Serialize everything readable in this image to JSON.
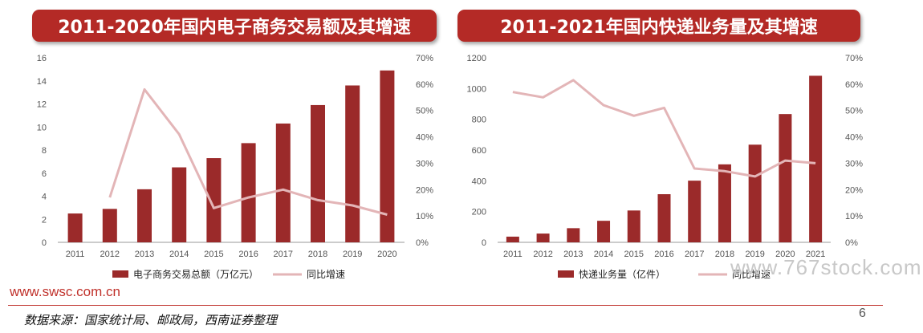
{
  "colors": {
    "bar": "#9b2a2a",
    "line": "#e3b5b7",
    "banner": "#b42a26",
    "accent": "#c0312b"
  },
  "left_title": "2011-2020年国内电子商务交易额及其增速",
  "right_title": "2011-2021年国内快递业务量及其增速",
  "footer": {
    "url": "www.swsc.com.cn",
    "source": "数据来源：国家统计局、邮政局，西南证券整理",
    "page": "6",
    "watermark": "www.767stock.com"
  },
  "chart_data": [
    {
      "type": "bar",
      "title": "2011-2020年国内电子商务交易额及其增速",
      "categories": [
        "2011",
        "2012",
        "2013",
        "2014",
        "2015",
        "2016",
        "2017",
        "2018",
        "2019",
        "2020"
      ],
      "series": [
        {
          "name": "电子商务交易总额（万亿元）",
          "type": "bar",
          "axis": "left",
          "values": [
            2.5,
            2.9,
            4.6,
            6.5,
            7.3,
            8.6,
            10.3,
            11.9,
            13.6,
            14.9
          ]
        },
        {
          "name": "同比增速",
          "type": "line",
          "axis": "right",
          "values": [
            null,
            0.17,
            0.58,
            0.41,
            0.13,
            0.17,
            0.2,
            0.16,
            0.14,
            0.105
          ]
        }
      ],
      "left_axis": {
        "min": 0,
        "max": 16,
        "ticks": [
          "0",
          "2",
          "4",
          "6",
          "8",
          "10",
          "12",
          "14",
          "16"
        ]
      },
      "right_axis": {
        "min": 0,
        "max": 0.7,
        "ticks": [
          "0%",
          "10%",
          "20%",
          "30%",
          "40%",
          "50%",
          "60%",
          "70%"
        ]
      },
      "legend_position": "bottom",
      "grid": false
    },
    {
      "type": "bar",
      "title": "2011-2021年国内快递业务量及其增速",
      "categories": [
        "2011",
        "2012",
        "2013",
        "2014",
        "2015",
        "2016",
        "2017",
        "2018",
        "2019",
        "2020",
        "2021"
      ],
      "series": [
        {
          "name": "快递业务量（亿件）",
          "type": "bar",
          "axis": "left",
          "values": [
            37,
            57,
            92,
            140,
            207,
            313,
            401,
            507,
            635,
            834,
            1083
          ]
        },
        {
          "name": "同比增速",
          "type": "line",
          "axis": "right",
          "values": [
            0.57,
            0.55,
            0.615,
            0.52,
            0.48,
            0.51,
            0.28,
            0.27,
            0.25,
            0.31,
            0.3
          ]
        }
      ],
      "left_axis": {
        "min": 0,
        "max": 1200,
        "ticks": [
          "0",
          "200",
          "400",
          "600",
          "800",
          "1000",
          "1200"
        ]
      },
      "right_axis": {
        "min": 0,
        "max": 0.7,
        "ticks": [
          "0%",
          "10%",
          "20%",
          "30%",
          "40%",
          "50%",
          "60%",
          "70%"
        ]
      },
      "legend_position": "bottom",
      "grid": false
    }
  ]
}
